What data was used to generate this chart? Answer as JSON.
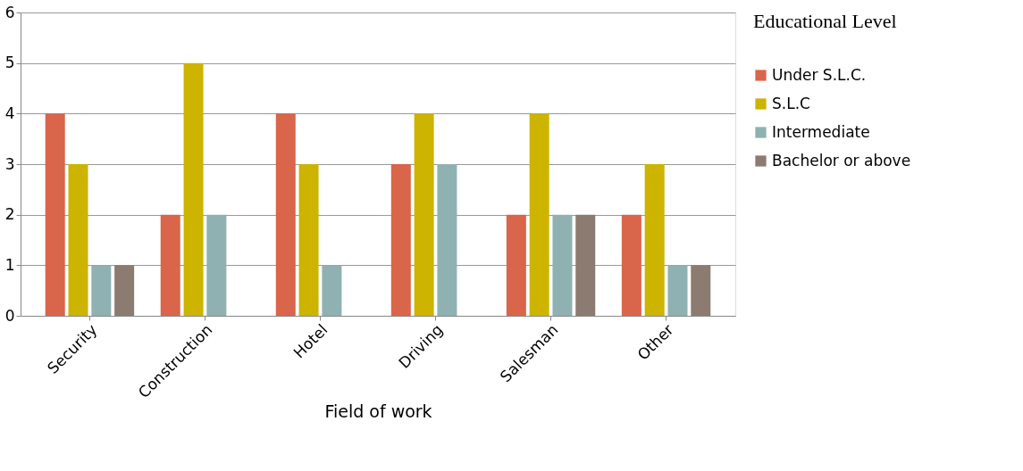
{
  "chart_data": {
    "type": "bar",
    "xlabel": "Field of work",
    "legend_title": "Educational Level",
    "categories": [
      "Security",
      "Construction",
      "Hotel",
      "Driving",
      "Salesman",
      "Other"
    ],
    "series": [
      {
        "name": "Under S.L.C.",
        "color": "#d9654b",
        "values": [
          4,
          2,
          4,
          3,
          2,
          2
        ]
      },
      {
        "name": "S.L.C",
        "color": "#ccb400",
        "values": [
          3,
          5,
          3,
          4,
          4,
          3
        ]
      },
      {
        "name": "Intermediate",
        "color": "#8fb1b1",
        "values": [
          1,
          2,
          1,
          3,
          2,
          1
        ]
      },
      {
        "name": "Bachelor or above",
        "color": "#8c7b70",
        "values": [
          1,
          0,
          0,
          0,
          2,
          1
        ]
      }
    ],
    "ylim": [
      0,
      6
    ],
    "yticks": [
      0,
      1,
      2,
      3,
      4,
      5,
      6
    ],
    "grid": "y",
    "legend": "right"
  }
}
